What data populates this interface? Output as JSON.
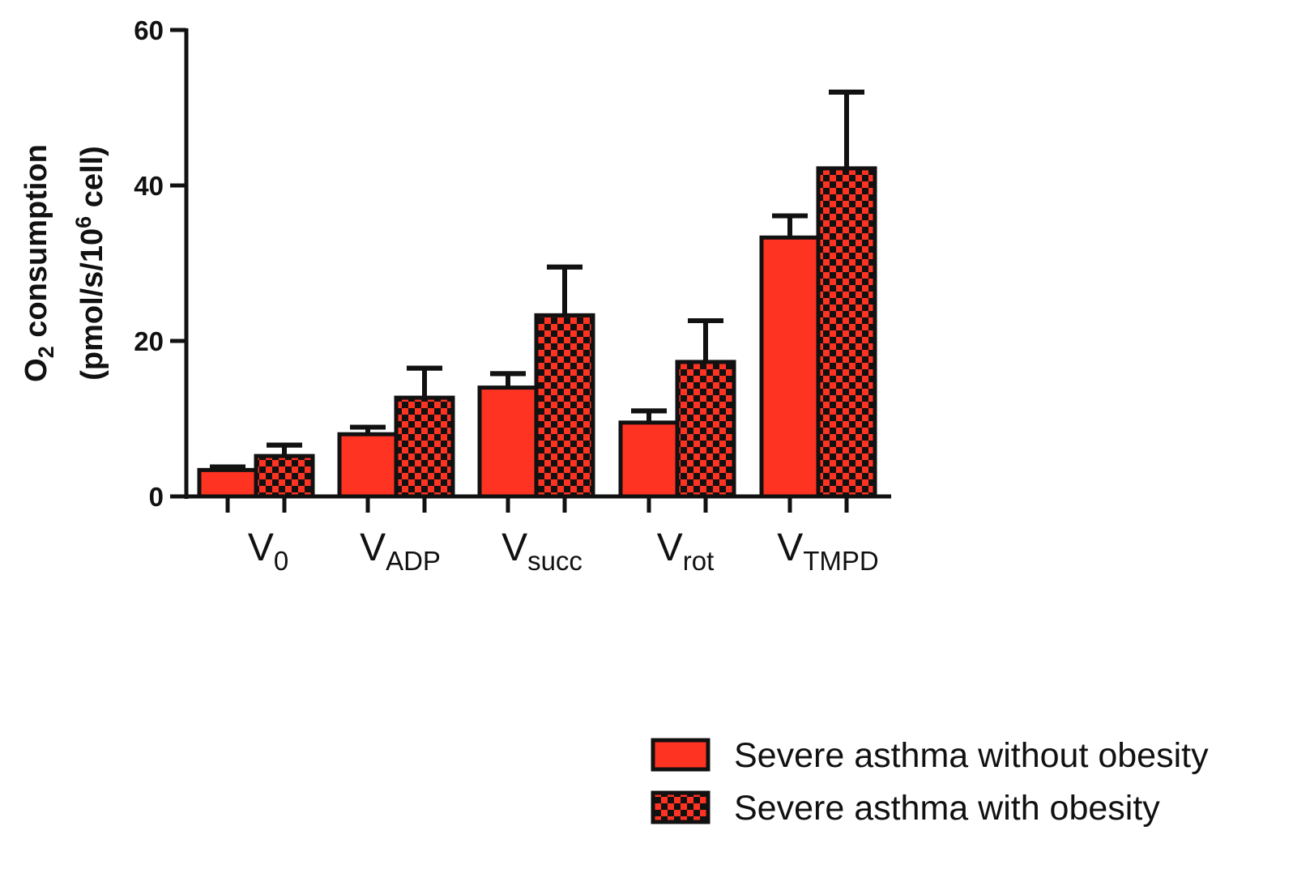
{
  "chart_data": {
    "type": "bar",
    "title": "",
    "ylabel_lines": [
      {
        "main": "O",
        "sub": "2",
        "rest": " consumption"
      },
      {
        "main": "(pmol/s/10",
        "sup": "6",
        "rest": " cell)"
      }
    ],
    "xlabel": "",
    "ylim": [
      0,
      60
    ],
    "yticks": [
      "0",
      "20",
      "40",
      "60"
    ],
    "ytick_values": [
      0,
      20,
      40,
      60
    ],
    "categories": [
      {
        "main": "V",
        "sub": "0"
      },
      {
        "main": "V",
        "sub": "ADP"
      },
      {
        "main": "V",
        "sub": "succ"
      },
      {
        "main": "V",
        "sub": "rot"
      },
      {
        "main": "V",
        "sub": "TMPD"
      }
    ],
    "series": [
      {
        "name": "Severe asthma without obesity",
        "pattern": "solid",
        "values": [
          3.4,
          8.0,
          14.0,
          9.5,
          33.3
        ],
        "error": [
          0.4,
          0.9,
          1.8,
          1.5,
          2.8
        ]
      },
      {
        "name": "Severe asthma with obesity",
        "pattern": "checkered",
        "values": [
          5.2,
          12.7,
          23.3,
          17.3,
          42.2
        ],
        "error": [
          1.4,
          3.8,
          6.2,
          5.3,
          9.8
        ]
      }
    ],
    "grid": false,
    "legend_position": "bottom-right",
    "colors": {
      "bar_fill": "#ff3322",
      "checker_dark": "#111111",
      "stroke": "#111111",
      "axis": "#111111",
      "background": "#ffffff"
    }
  }
}
